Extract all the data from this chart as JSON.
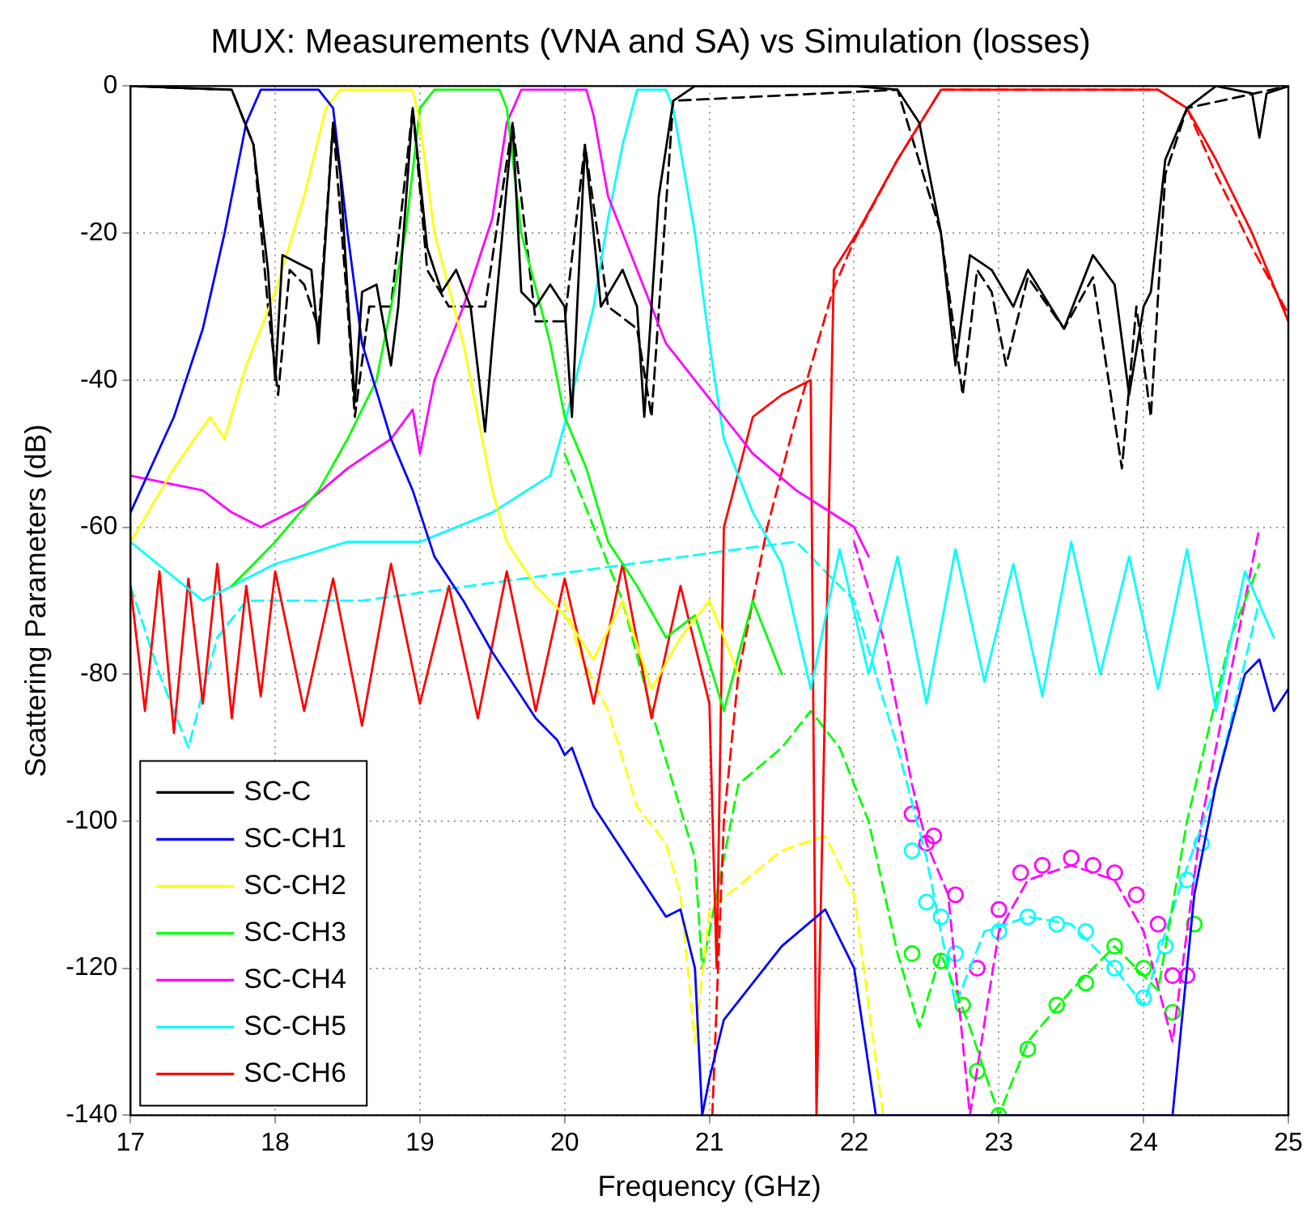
{
  "chart_data": {
    "type": "line",
    "title": "MUX: Measurements (VNA and SA) vs Simulation (losses)",
    "xlabel": "Frequency (GHz)",
    "ylabel": "Scattering Parameters (dB)",
    "xlim": [
      17,
      25
    ],
    "xticks": [
      17,
      18,
      19,
      20,
      21,
      22,
      23,
      24,
      25
    ],
    "ylim": [
      -140,
      0
    ],
    "yticks": [
      -140,
      -120,
      -100,
      -80,
      -60,
      -40,
      -20,
      0
    ],
    "grid": true,
    "legend": "bottom left",
    "series": [
      {
        "name": "SC-C",
        "color": "#000000",
        "x": [
          17,
          17.7,
          17.85,
          17.95,
          18,
          18.05,
          18.15,
          18.25,
          18.3,
          18.35,
          18.4,
          18.45,
          18.5,
          18.55,
          18.6,
          18.7,
          18.8,
          18.85,
          18.95,
          19.05,
          19.15,
          19.25,
          19.35,
          19.45,
          19.5,
          19.64,
          19.7,
          19.8,
          19.9,
          20,
          20.05,
          20.14,
          20.25,
          20.4,
          20.5,
          20.55,
          20.65,
          20.75,
          20.9,
          22,
          22.3,
          22.45,
          22.6,
          22.7,
          22.8,
          22.95,
          23.1,
          23.2,
          23.45,
          23.65,
          23.8,
          23.9,
          24,
          24.05,
          24.15,
          24.3,
          24.5,
          24.75,
          24.8,
          24.85,
          25
        ],
        "values": [
          0,
          -0.5,
          -8,
          -25,
          -40,
          -23,
          -24,
          -25,
          -35,
          -20,
          -5,
          -12,
          -28,
          -43,
          -28,
          -27,
          -38,
          -30,
          -3,
          -22,
          -28,
          -25,
          -30,
          -47,
          -35,
          -5,
          -28,
          -30,
          -27,
          -30,
          -45,
          -8,
          -30,
          -25,
          -30,
          -45,
          -15,
          -2,
          0,
          0,
          -0.5,
          -5,
          -20,
          -38,
          -23,
          -25,
          -30,
          -25,
          -33,
          -23,
          -27,
          -42,
          -30,
          -28,
          -10,
          -3,
          0,
          -1,
          -7,
          -1,
          0
        ]
      },
      {
        "name": "SC-CH1",
        "color": "#0000ff",
        "x": [
          17,
          17.3,
          17.5,
          17.65,
          17.8,
          17.9,
          18.3,
          18.4,
          18.5,
          18.6,
          18.8,
          18.95,
          19.1,
          19.3,
          19.5,
          19.6,
          19.8,
          19.95,
          20,
          20.05,
          20.2,
          20.5,
          20.7,
          20.8,
          20.9,
          20.95,
          21,
          21.1,
          21.3,
          21.5,
          21.8,
          22,
          22.15,
          24.2,
          24.35,
          24.5,
          24.7,
          24.8,
          24.9,
          25
        ],
        "values": [
          -58,
          -45,
          -33,
          -20,
          -5,
          -0.5,
          -0.5,
          -3,
          -20,
          -35,
          -48,
          -55,
          -64,
          -70,
          -77,
          -80,
          -86,
          -89,
          -91,
          -90,
          -98,
          -107,
          -113,
          -112,
          -120,
          -140,
          -135,
          -127,
          -122,
          -117,
          -112,
          -120,
          -140,
          -140,
          -110,
          -95,
          -80,
          -78,
          -85,
          -82
        ]
      },
      {
        "name": "SC-CH2",
        "color": "#ffff00",
        "x": [
          17,
          17.3,
          17.55,
          17.65,
          17.8,
          18,
          18.2,
          18.35,
          18.45,
          18.95,
          19,
          19.1,
          19.3,
          19.4,
          19.5,
          19.6,
          19.8,
          20,
          20.2,
          20.4,
          20.6,
          20.8,
          21,
          21.2
        ],
        "values": [
          -62,
          -52,
          -45,
          -48,
          -38,
          -28,
          -15,
          -3,
          -0.5,
          -0.5,
          -5,
          -20,
          -35,
          -45,
          -55,
          -62,
          -68,
          -72,
          -78,
          -70,
          -82,
          -75,
          -70,
          -80
        ]
      },
      {
        "name": "SC-CH3",
        "color": "#00ff00",
        "x": [
          17.7,
          18,
          18.3,
          18.5,
          18.7,
          18.9,
          19,
          19.1,
          19.55,
          19.6,
          19.7,
          19.9,
          20,
          20.15,
          20.3,
          20.5,
          20.7,
          20.9,
          21.1,
          21.3,
          21.5
        ],
        "values": [
          -68,
          -62,
          -55,
          -48,
          -40,
          -20,
          -3,
          -0.5,
          -0.5,
          -3,
          -20,
          -35,
          -45,
          -52,
          -62,
          -68,
          -75,
          -72,
          -85,
          -70,
          -80
        ]
      },
      {
        "name": "SC-CH4",
        "color": "#ff00ff",
        "x": [
          17,
          17.5,
          17.7,
          17.9,
          18.2,
          18.5,
          18.8,
          18.95,
          19,
          19.1,
          19.3,
          19.5,
          19.6,
          19.7,
          20.15,
          20.2,
          20.3,
          20.5,
          20.7,
          20.9,
          21.1,
          21.3,
          21.6,
          22,
          22.1
        ],
        "values": [
          -53,
          -55,
          -58,
          -60,
          -57,
          -52,
          -48,
          -44,
          -50,
          -40,
          -30,
          -18,
          -5,
          -0.5,
          -0.5,
          -4,
          -15,
          -25,
          -35,
          -40,
          -45,
          -50,
          -55,
          -60,
          -64
        ]
      },
      {
        "name": "SC-CH5",
        "color": "#00ffff",
        "x": [
          17,
          17.5,
          18,
          18.5,
          19,
          19.5,
          19.9,
          20,
          20.2,
          20.3,
          20.4,
          20.5,
          20.7,
          20.75,
          20.9,
          21,
          21.1,
          21.3,
          21.5,
          21.7,
          21.9,
          22.1,
          22.3,
          22.5,
          22.7,
          22.9,
          23.1,
          23.3,
          23.5,
          23.7,
          23.9,
          24.1,
          24.3,
          24.5,
          24.7,
          24.9
        ],
        "values": [
          -62,
          -70,
          -65,
          -62,
          -62,
          -58,
          -53,
          -46,
          -30,
          -18,
          -8,
          -0.5,
          -0.5,
          -3,
          -20,
          -35,
          -48,
          -58,
          -65,
          -82,
          -63,
          -80,
          -64,
          -84,
          -63,
          -81,
          -65,
          -83,
          -62,
          -80,
          -64,
          -82,
          -63,
          -85,
          -66,
          -75
        ]
      },
      {
        "name": "SC-CH6",
        "color": "#ff0000",
        "x": [
          17,
          17.1,
          17.2,
          17.3,
          17.4,
          17.5,
          17.6,
          17.7,
          17.8,
          17.9,
          18,
          18.2,
          18.4,
          18.6,
          18.8,
          19,
          19.2,
          19.4,
          19.6,
          19.8,
          20,
          20.2,
          20.4,
          20.6,
          20.8,
          21,
          21.05,
          21.1,
          21.3,
          21.5,
          21.7,
          21.74,
          21.86,
          22.02,
          22.3,
          22.6,
          24.1,
          24.3,
          24.5,
          24.75,
          25
        ],
        "values": [
          -68,
          -85,
          -66,
          -88,
          -67,
          -84,
          -65,
          -86,
          -68,
          -83,
          -66,
          -85,
          -67,
          -87,
          -65,
          -84,
          -68,
          -86,
          -66,
          -85,
          -67,
          -84,
          -65,
          -86,
          -68,
          -84,
          -120,
          -60,
          -45,
          -42,
          -40,
          -140,
          -25,
          -20,
          -10,
          -0.5,
          -0.5,
          -3,
          -10,
          -20,
          -32
        ]
      },
      {
        "color": "#000000",
        "line_style": "dashed",
        "x": [
          17,
          17.7,
          17.85,
          17.95,
          18.02,
          18.1,
          18.2,
          18.3,
          18.4,
          18.5,
          18.55,
          18.65,
          18.8,
          18.95,
          19.05,
          19.2,
          19.45,
          19.64,
          19.8,
          20,
          20.14,
          20.3,
          20.5,
          20.6,
          20.75,
          22.3,
          22.6,
          22.75,
          22.85,
          22.95,
          23.05,
          23.2,
          23.45,
          23.65,
          23.85,
          23.95,
          24.05,
          24.15,
          24.3,
          25
        ],
        "values": [
          0,
          -0.5,
          -8,
          -30,
          -42,
          -25,
          -27,
          -33,
          -5,
          -30,
          -45,
          -30,
          -30,
          -3,
          -25,
          -30,
          -30,
          -5,
          -32,
          -32,
          -8,
          -30,
          -33,
          -45,
          -2,
          -0.5,
          -20,
          -42,
          -25,
          -28,
          -38,
          -26,
          -33,
          -26,
          -52,
          -30,
          -45,
          -12,
          -3,
          0
        ]
      },
      {
        "color": "#ff0000",
        "line_style": "dashed",
        "x": [
          21.02,
          21.1,
          21.2,
          21.4,
          21.6,
          21.85,
          22,
          22.3,
          22.6,
          24.1,
          24.3,
          24.5,
          24.75,
          25
        ],
        "values": [
          -140,
          -100,
          -80,
          -60,
          -45,
          -28,
          -21,
          -10,
          -0.5,
          -0.5,
          -3,
          -12,
          -22,
          -31
        ]
      },
      {
        "color": "#ffff00",
        "line_style": "dashed",
        "x": [
          20,
          20.1,
          20.3,
          20.5,
          20.7,
          20.8,
          20.9,
          21,
          21.5,
          21.8,
          22,
          22.2
        ],
        "values": [
          -70,
          -77,
          -85,
          -98,
          -103,
          -110,
          -130,
          -112,
          -104,
          -102,
          -110,
          -140
        ]
      },
      {
        "color": "#00ff00",
        "line_style": "dashed",
        "x": [
          20,
          20.4,
          20.6,
          20.9,
          20.95,
          21.05,
          21.2,
          21.5,
          21.7,
          21.9,
          22.1,
          22.3,
          22.45,
          22.6,
          22.8,
          23,
          23.2,
          23.5,
          23.8,
          24.1,
          24.3,
          24.6,
          24.8
        ],
        "values": [
          -50,
          -70,
          -85,
          -105,
          -120,
          -110,
          -95,
          -90,
          -85,
          -90,
          -100,
          -118,
          -128,
          -118,
          -128,
          -140,
          -130,
          -123,
          -117,
          -123,
          -100,
          -75,
          -65
        ]
      },
      {
        "color": "#00ffff",
        "line_style": "dashed",
        "x": [
          17,
          17.2,
          17.4,
          17.6,
          17.8,
          18.2,
          18.6,
          21.2,
          21.6,
          22,
          22.3,
          22.5,
          22.7,
          22.9,
          23.2,
          23.5,
          23.8,
          24,
          24.2,
          24.5,
          24.8
        ],
        "values": [
          -68,
          -80,
          -90,
          -75,
          -70,
          -70,
          -70,
          -63,
          -62,
          -70,
          -90,
          -105,
          -125,
          -115,
          -113,
          -114,
          -120,
          -125,
          -112,
          -95,
          -70
        ]
      },
      {
        "color": "#ff00ff",
        "line_style": "dashed",
        "x": [
          22,
          22.2,
          22.4,
          22.5,
          22.65,
          22.8,
          23,
          23.2,
          23.5,
          23.8,
          24,
          24.2,
          24.4,
          24.6,
          24.8
        ],
        "values": [
          -62,
          -75,
          -95,
          -103,
          -110,
          -140,
          -115,
          -108,
          -106,
          -108,
          -115,
          -130,
          -100,
          -80,
          -60
        ]
      },
      {
        "color": "#ff00ff",
        "type": "scatter",
        "marker": "circle",
        "x": [
          22.4,
          22.5,
          22.55,
          22.7,
          22.85,
          23,
          23.15,
          23.3,
          23.5,
          23.65,
          23.8,
          23.95,
          24.1,
          24.2,
          24.3
        ],
        "values": [
          -99,
          -103,
          -102,
          -110,
          -120,
          -112,
          -107,
          -106,
          -105,
          -106,
          -107,
          -110,
          -114,
          -121,
          -121
        ]
      },
      {
        "color": "#00ffff",
        "type": "scatter",
        "marker": "circle",
        "x": [
          22.4,
          22.5,
          22.6,
          22.7,
          23,
          23.2,
          23.4,
          23.6,
          23.8,
          24,
          24.15,
          24.3,
          24.4
        ],
        "values": [
          -104,
          -111,
          -113,
          -118,
          -115,
          -113,
          -114,
          -115,
          -120,
          -124,
          -117,
          -108,
          -103
        ]
      },
      {
        "color": "#00ff00",
        "type": "scatter",
        "marker": "circle",
        "x": [
          22.4,
          22.6,
          22.75,
          22.85,
          23,
          23.2,
          23.4,
          23.6,
          23.8,
          24,
          24.2,
          24.35
        ],
        "values": [
          -118,
          -119,
          -125,
          -134,
          -140,
          -131,
          -125,
          -122,
          -117,
          -120,
          -126,
          -114
        ]
      }
    ]
  }
}
